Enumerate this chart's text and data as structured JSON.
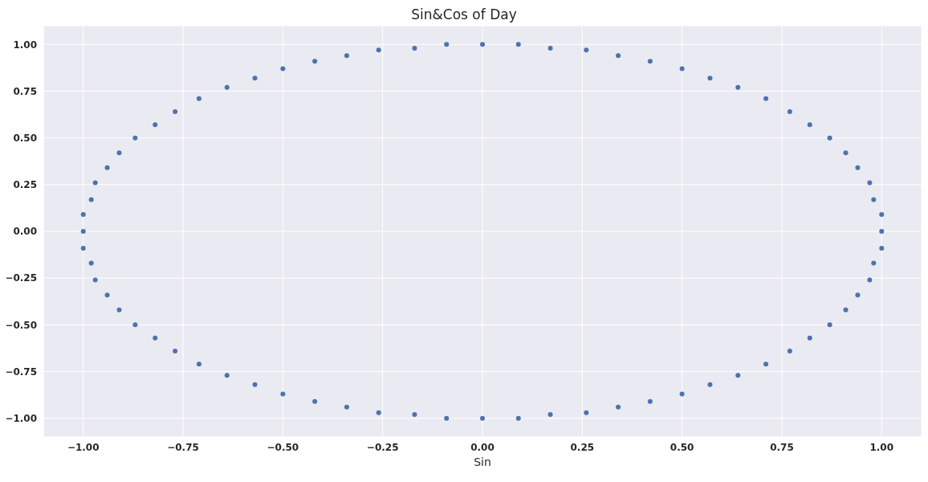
{
  "chart_data": {
    "type": "scatter",
    "title": "Sin&Cos of Day",
    "xlabel": "Sin",
    "x": [
      0,
      0.09,
      0.17,
      0.26,
      0.34,
      0.42,
      0.5,
      0.57,
      0.64,
      0.71,
      0.77,
      0.82,
      0.87,
      0.91,
      0.94,
      0.97,
      0.98,
      1.0,
      1.0,
      1.0,
      0.98,
      0.97,
      0.94,
      0.91,
      0.87,
      0.82,
      0.77,
      0.71,
      0.64,
      0.57,
      0.5,
      0.42,
      0.34,
      0.26,
      0.17,
      0.09,
      0,
      -0.09,
      -0.17,
      -0.26,
      -0.34,
      -0.42,
      -0.5,
      -0.57,
      -0.64,
      -0.71,
      -0.77,
      -0.82,
      -0.87,
      -0.91,
      -0.94,
      -0.97,
      -0.98,
      -1.0,
      -1.0,
      -1.0,
      -0.98,
      -0.97,
      -0.94,
      -0.91,
      -0.87,
      -0.82,
      -0.77,
      -0.71,
      -0.64,
      -0.57,
      -0.5,
      -0.42,
      -0.34,
      -0.26,
      -0.17,
      -0.09
    ],
    "series": [
      {
        "color": "#4c72b0",
        "values": [
          1.0,
          1.0,
          0.98,
          0.97,
          0.94,
          0.91,
          0.87,
          0.82,
          0.77,
          0.71,
          0.64,
          0.57,
          0.5,
          0.42,
          0.34,
          0.26,
          0.17,
          0.09,
          0,
          -0.09,
          -0.17,
          -0.26,
          -0.34,
          -0.42,
          -0.5,
          -0.57,
          -0.64,
          -0.71,
          -0.77,
          -0.82,
          -0.87,
          -0.91,
          -0.94,
          -0.97,
          -0.98,
          -1.0,
          -1.0,
          -1.0,
          -0.98,
          -0.97,
          -0.94,
          -0.91,
          -0.87,
          -0.82,
          -0.77,
          -0.71,
          -0.64,
          -0.57,
          -0.5,
          -0.42,
          -0.34,
          -0.26,
          -0.17,
          -0.09,
          0,
          0.09,
          0.17,
          0.26,
          0.34,
          0.42,
          0.5,
          0.57,
          0.64,
          0.71,
          0.77,
          0.82,
          0.87,
          0.91,
          0.94,
          0.97,
          0.98,
          1.0
        ]
      }
    ],
    "xlim": [
      -1.1,
      1.1
    ],
    "ylim": [
      -1.1,
      1.1
    ],
    "xticks": [
      {
        "value": -1,
        "label": "−1.00"
      },
      {
        "value": -0.75,
        "label": "−0.75"
      },
      {
        "value": -0.5,
        "label": "−0.50"
      },
      {
        "value": -0.25,
        "label": "−0.25"
      },
      {
        "value": 0,
        "label": "0.00"
      },
      {
        "value": 0.25,
        "label": "0.25"
      },
      {
        "value": 0.5,
        "label": "0.50"
      },
      {
        "value": 0.75,
        "label": "0.75"
      },
      {
        "value": 1,
        "label": "1.00"
      }
    ],
    "yticks": [
      {
        "value": -1,
        "label": "−1.00"
      },
      {
        "value": -0.75,
        "label": "−0.75"
      },
      {
        "value": -0.5,
        "label": "−0.50"
      },
      {
        "value": -0.25,
        "label": "−0.25"
      },
      {
        "value": 0,
        "label": "0.00"
      },
      {
        "value": 0.25,
        "label": "0.25"
      },
      {
        "value": 0.5,
        "label": "0.50"
      },
      {
        "value": 0.75,
        "label": "0.75"
      },
      {
        "value": 1,
        "label": "1.00"
      }
    ],
    "grid": true,
    "marker": "circle"
  }
}
